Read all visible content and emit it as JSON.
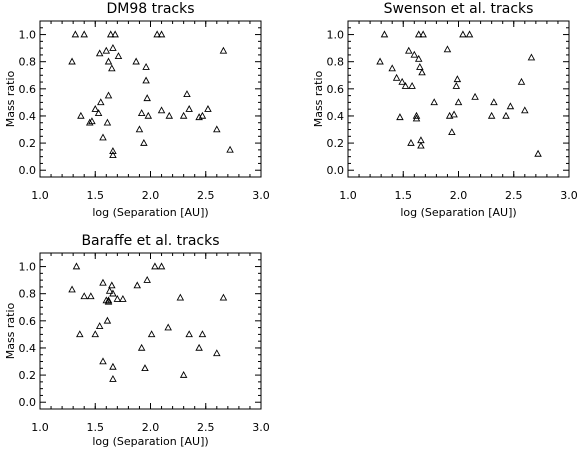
{
  "chart_data": [
    {
      "type": "scatter",
      "title": "DM98 tracks",
      "xlabel": "log (Separation [AU])",
      "ylabel": "Mass ratio",
      "xlim": [
        1.0,
        3.0
      ],
      "ylim": [
        -0.05,
        1.1
      ],
      "xticks": [
        "1.0",
        "1.5",
        "2.0",
        "2.5",
        "3.0"
      ],
      "yticks": [
        "0.0",
        "0.2",
        "0.4",
        "0.6",
        "0.8",
        "1.0"
      ],
      "marker": "open-triangle",
      "grid": false,
      "points": [
        [
          1.29,
          0.8
        ],
        [
          1.32,
          1.0
        ],
        [
          1.4,
          1.0
        ],
        [
          1.37,
          0.4
        ],
        [
          1.45,
          0.35
        ],
        [
          1.47,
          0.36
        ],
        [
          1.5,
          0.45
        ],
        [
          1.54,
          0.86
        ],
        [
          1.55,
          0.5
        ],
        [
          1.57,
          0.24
        ],
        [
          1.6,
          0.88
        ],
        [
          1.62,
          0.8
        ],
        [
          1.62,
          0.55
        ],
        [
          1.64,
          1.0
        ],
        [
          1.65,
          0.75
        ],
        [
          1.66,
          0.9
        ],
        [
          1.68,
          1.0
        ],
        [
          1.66,
          0.14
        ],
        [
          1.66,
          0.11
        ],
        [
          1.71,
          0.84
        ],
        [
          1.61,
          0.35
        ],
        [
          1.53,
          0.42
        ],
        [
          1.87,
          0.8
        ],
        [
          1.9,
          0.3
        ],
        [
          1.92,
          0.42
        ],
        [
          1.94,
          0.2
        ],
        [
          1.96,
          0.76
        ],
        [
          1.96,
          0.66
        ],
        [
          1.97,
          0.53
        ],
        [
          1.98,
          0.4
        ],
        [
          2.06,
          1.0
        ],
        [
          2.1,
          1.0
        ],
        [
          2.1,
          0.44
        ],
        [
          2.17,
          0.4
        ],
        [
          2.3,
          0.4
        ],
        [
          2.33,
          0.56
        ],
        [
          2.35,
          0.45
        ],
        [
          2.44,
          0.39
        ],
        [
          2.47,
          0.4
        ],
        [
          2.52,
          0.45
        ],
        [
          2.6,
          0.3
        ],
        [
          2.66,
          0.88
        ],
        [
          2.72,
          0.15
        ]
      ]
    },
    {
      "type": "scatter",
      "title": "Swenson et al. tracks",
      "xlabel": "log (Separation [AU])",
      "ylabel": "Mass ratio",
      "xlim": [
        1.0,
        3.0
      ],
      "ylim": [
        -0.05,
        1.1
      ],
      "xticks": [
        "1.0",
        "1.5",
        "2.0",
        "2.5",
        "3.0"
      ],
      "yticks": [
        "0.0",
        "0.2",
        "0.4",
        "0.6",
        "0.8",
        "1.0"
      ],
      "marker": "open-triangle",
      "grid": false,
      "points": [
        [
          1.29,
          0.8
        ],
        [
          1.33,
          1.0
        ],
        [
          1.4,
          0.75
        ],
        [
          1.44,
          0.68
        ],
        [
          1.47,
          0.39
        ],
        [
          1.49,
          0.65
        ],
        [
          1.52,
          0.62
        ],
        [
          1.55,
          0.88
        ],
        [
          1.57,
          0.2
        ],
        [
          1.58,
          0.62
        ],
        [
          1.6,
          0.85
        ],
        [
          1.62,
          0.38
        ],
        [
          1.62,
          0.4
        ],
        [
          1.64,
          1.0
        ],
        [
          1.64,
          0.82
        ],
        [
          1.65,
          0.76
        ],
        [
          1.66,
          0.22
        ],
        [
          1.66,
          0.18
        ],
        [
          1.68,
          1.0
        ],
        [
          1.67,
          0.72
        ],
        [
          1.78,
          0.5
        ],
        [
          1.9,
          0.89
        ],
        [
          1.92,
          0.4
        ],
        [
          1.94,
          0.28
        ],
        [
          1.96,
          0.41
        ],
        [
          1.98,
          0.62
        ],
        [
          1.99,
          0.67
        ],
        [
          2.0,
          0.5
        ],
        [
          2.04,
          1.0
        ],
        [
          2.1,
          1.0
        ],
        [
          2.15,
          0.54
        ],
        [
          2.3,
          0.4
        ],
        [
          2.32,
          0.5
        ],
        [
          2.43,
          0.4
        ],
        [
          2.47,
          0.47
        ],
        [
          2.57,
          0.65
        ],
        [
          2.6,
          0.44
        ],
        [
          2.66,
          0.83
        ],
        [
          2.72,
          0.12
        ]
      ]
    },
    {
      "type": "scatter",
      "title": "Baraffe et al. tracks",
      "xlabel": "log (Separation [AU])",
      "ylabel": "Mass ratio",
      "xlim": [
        1.0,
        3.0
      ],
      "ylim": [
        -0.05,
        1.1
      ],
      "xticks": [
        "1.0",
        "1.5",
        "2.0",
        "2.5",
        "3.0"
      ],
      "yticks": [
        "0.0",
        "0.2",
        "0.4",
        "0.6",
        "0.8",
        "1.0"
      ],
      "marker": "open-triangle",
      "grid": false,
      "points": [
        [
          1.29,
          0.83
        ],
        [
          1.33,
          1.0
        ],
        [
          1.36,
          0.5
        ],
        [
          1.4,
          0.78
        ],
        [
          1.46,
          0.78
        ],
        [
          1.5,
          0.5
        ],
        [
          1.54,
          0.56
        ],
        [
          1.57,
          0.3
        ],
        [
          1.57,
          0.88
        ],
        [
          1.6,
          0.75
        ],
        [
          1.61,
          0.6
        ],
        [
          1.62,
          0.75
        ],
        [
          1.62,
          0.74
        ],
        [
          1.63,
          0.82
        ],
        [
          1.65,
          0.86
        ],
        [
          1.66,
          0.8
        ],
        [
          1.66,
          0.26
        ],
        [
          1.66,
          0.17
        ],
        [
          1.7,
          0.76
        ],
        [
          1.75,
          0.76
        ],
        [
          1.88,
          0.86
        ],
        [
          1.92,
          0.4
        ],
        [
          1.95,
          0.25
        ],
        [
          1.97,
          0.9
        ],
        [
          2.01,
          0.5
        ],
        [
          2.04,
          1.0
        ],
        [
          2.1,
          1.0
        ],
        [
          2.16,
          0.55
        ],
        [
          2.27,
          0.77
        ],
        [
          2.3,
          0.2
        ],
        [
          2.35,
          0.5
        ],
        [
          2.44,
          0.4
        ],
        [
          2.47,
          0.5
        ],
        [
          2.6,
          0.36
        ],
        [
          2.66,
          0.77
        ]
      ]
    }
  ]
}
